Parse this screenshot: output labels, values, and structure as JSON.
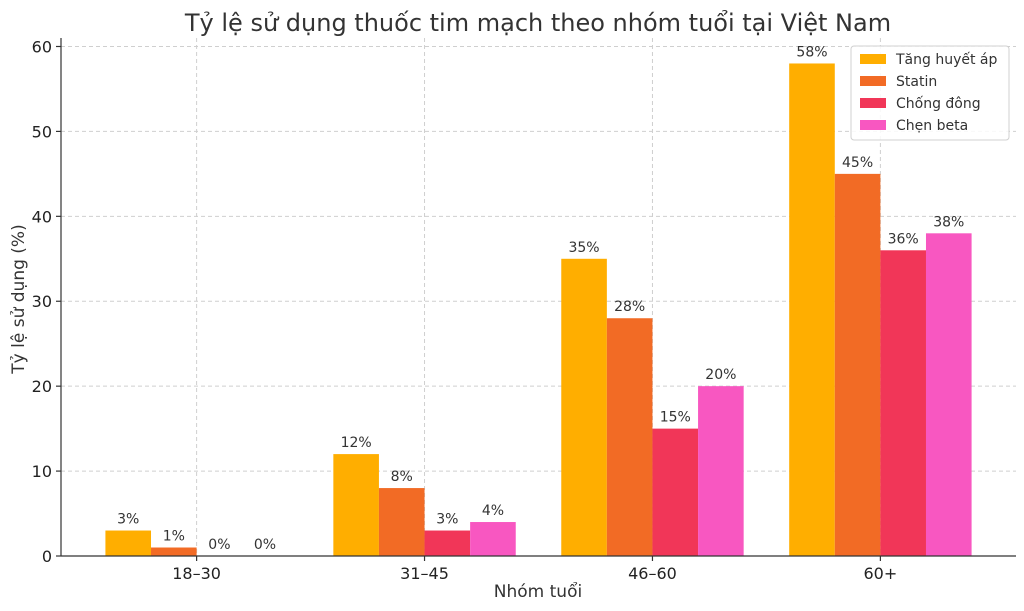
{
  "chart_data": {
    "type": "bar",
    "title": "Tỷ lệ sử dụng thuốc tim mạch theo nhóm tuổi tại Việt Nam",
    "xlabel": "Nhóm tuổi",
    "ylabel": "Tỷ lệ sử dụng (%)",
    "categories": [
      "18–30",
      "31–45",
      "46–60",
      "60+"
    ],
    "ylim": [
      0,
      61
    ],
    "yticks": [
      0,
      10,
      20,
      30,
      40,
      50,
      60
    ],
    "grid": true,
    "legend_position": "top-right",
    "series": [
      {
        "name": "Tăng huyết áp",
        "color": "#FFAE00",
        "values": [
          3,
          12,
          35,
          58
        ],
        "labels": [
          "3%",
          "12%",
          "35%",
          "58%"
        ]
      },
      {
        "name": "Statin",
        "color": "#F26B25",
        "values": [
          1,
          8,
          28,
          45
        ],
        "labels": [
          "1%",
          "8%",
          "28%",
          "45%"
        ]
      },
      {
        "name": "Chống đông",
        "color": "#F13658",
        "values": [
          0,
          3,
          15,
          36
        ],
        "labels": [
          "0%",
          "3%",
          "15%",
          "36%"
        ]
      },
      {
        "name": "Chẹn beta",
        "color": "#F857C1",
        "values": [
          0,
          4,
          20,
          38
        ],
        "labels": [
          "0%",
          "4%",
          "20%",
          "38%"
        ]
      }
    ]
  }
}
